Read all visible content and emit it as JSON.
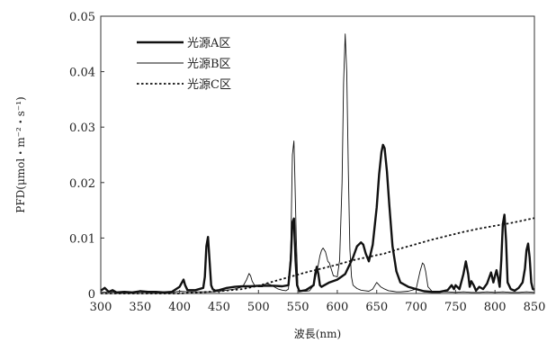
{
  "chart_data": {
    "type": "line",
    "title": "",
    "xlabel": "波長(nm)",
    "ylabel": "PFD(μmol・m⁻²・s⁻¹)",
    "xlim": [
      300,
      850
    ],
    "ylim": [
      0,
      0.05
    ],
    "x_ticks": [
      "300",
      "350",
      "400",
      "450",
      "500",
      "550",
      "600",
      "650",
      "700",
      "750",
      "800",
      "850"
    ],
    "y_ticks": [
      "0",
      "0.01",
      "0.02",
      "0.03",
      "0.04",
      "0.05"
    ],
    "grid": false,
    "legend_position": "top-left",
    "series": [
      {
        "name": "光源A区",
        "style": "thick-solid",
        "x": [
          300,
          305,
          310,
          315,
          320,
          330,
          340,
          350,
          360,
          370,
          380,
          390,
          400,
          403,
          405,
          407,
          410,
          420,
          430,
          432,
          434,
          436,
          438,
          440,
          442,
          445,
          450,
          460,
          470,
          480,
          490,
          500,
          510,
          520,
          530,
          538,
          541,
          543,
          545,
          547,
          549,
          552,
          560,
          570,
          572,
          574,
          576,
          578,
          580,
          590,
          600,
          610,
          620,
          625,
          630,
          633,
          636,
          640,
          645,
          650,
          653,
          656,
          658,
          660,
          663,
          666,
          670,
          675,
          680,
          690,
          700,
          710,
          720,
          730,
          740,
          745,
          748,
          750,
          755,
          760,
          763,
          766,
          768,
          770,
          773,
          776,
          780,
          785,
          790,
          795,
          798,
          800,
          802,
          804,
          806,
          808,
          810,
          812,
          814,
          816,
          820,
          825,
          830,
          835,
          838,
          840,
          842,
          844,
          846,
          848,
          850
        ],
        "values": [
          0.0005,
          0.001,
          0.0003,
          0.0006,
          0.0002,
          0.0003,
          0.0002,
          0.0004,
          0.0003,
          0.0003,
          0.0002,
          0.0003,
          0.0012,
          0.002,
          0.0025,
          0.0015,
          0.0006,
          0.0006,
          0.001,
          0.003,
          0.0085,
          0.0102,
          0.006,
          0.0015,
          0.0008,
          0.0005,
          0.0006,
          0.001,
          0.0012,
          0.0013,
          0.0013,
          0.0014,
          0.0014,
          0.0014,
          0.0013,
          0.0015,
          0.006,
          0.0128,
          0.0135,
          0.006,
          0.0015,
          0.0004,
          0.0006,
          0.0015,
          0.0035,
          0.0048,
          0.0035,
          0.0015,
          0.0012,
          0.002,
          0.0025,
          0.0035,
          0.0065,
          0.0085,
          0.0092,
          0.0088,
          0.0072,
          0.0058,
          0.0088,
          0.0155,
          0.0215,
          0.0255,
          0.0268,
          0.0262,
          0.022,
          0.016,
          0.0085,
          0.004,
          0.002,
          0.0012,
          0.0008,
          0.0004,
          0.0003,
          0.0003,
          0.0006,
          0.0015,
          0.0008,
          0.0015,
          0.0008,
          0.0035,
          0.0058,
          0.0035,
          0.0012,
          0.0022,
          0.0015,
          0.0005,
          0.0012,
          0.0008,
          0.0018,
          0.0038,
          0.002,
          0.0032,
          0.0042,
          0.0028,
          0.0012,
          0.006,
          0.0125,
          0.0142,
          0.0095,
          0.002,
          0.0008,
          0.0005,
          0.001,
          0.002,
          0.0045,
          0.0078,
          0.009,
          0.0065,
          0.002,
          0.0008,
          0.0007
        ]
      },
      {
        "name": "光源B区",
        "style": "thin-solid",
        "x": [
          300,
          310,
          320,
          330,
          340,
          350,
          360,
          370,
          380,
          390,
          400,
          410,
          420,
          430,
          440,
          450,
          460,
          470,
          480,
          485,
          488,
          490,
          492,
          495,
          500,
          505,
          510,
          515,
          520,
          525,
          530,
          535,
          538,
          541,
          543,
          545,
          546,
          548,
          550,
          552,
          555,
          560,
          565,
          570,
          575,
          578,
          580,
          582,
          585,
          588,
          590,
          595,
          600,
          603,
          606,
          608,
          610,
          612,
          614,
          616,
          618,
          620,
          625,
          630,
          635,
          640,
          645,
          650,
          655,
          660,
          665,
          670,
          675,
          680,
          690,
          700,
          705,
          708,
          710,
          712,
          715,
          720,
          730,
          740,
          750,
          760,
          770,
          780,
          790,
          800,
          810,
          820,
          830,
          840,
          850
        ],
        "values": [
          0.0002,
          0.0003,
          0.0002,
          0.0002,
          0.0002,
          0.0003,
          0.0002,
          0.0002,
          0.0003,
          0.0002,
          0.0004,
          0.0003,
          0.0003,
          0.0003,
          0.0003,
          0.0004,
          0.0006,
          0.0008,
          0.0012,
          0.0025,
          0.0036,
          0.0032,
          0.0022,
          0.0015,
          0.0012,
          0.0012,
          0.0018,
          0.0016,
          0.0012,
          0.0008,
          0.0006,
          0.0005,
          0.0008,
          0.008,
          0.025,
          0.0275,
          0.022,
          0.01,
          0.0015,
          0.0006,
          0.0004,
          0.0004,
          0.0005,
          0.0015,
          0.0045,
          0.0068,
          0.0078,
          0.0082,
          0.0075,
          0.0058,
          0.0055,
          0.0032,
          0.003,
          0.006,
          0.02,
          0.038,
          0.0468,
          0.04,
          0.022,
          0.008,
          0.003,
          0.0015,
          0.0009,
          0.0006,
          0.0005,
          0.0004,
          0.0008,
          0.002,
          0.0012,
          0.0008,
          0.0005,
          0.0004,
          0.0003,
          0.0003,
          0.0004,
          0.0008,
          0.004,
          0.0055,
          0.0052,
          0.004,
          0.0012,
          0.0004,
          0.0003,
          0.0003,
          0.0002,
          0.0003,
          0.0002,
          0.0002,
          0.0003,
          0.0002,
          0.0003,
          0.0002,
          0.0002,
          0.0003,
          0.0002
        ]
      },
      {
        "name": "光源C区",
        "style": "dotted",
        "x": [
          300,
          350,
          400,
          450,
          480,
          500,
          520,
          540,
          560,
          580,
          600,
          620,
          640,
          660,
          680,
          700,
          720,
          740,
          760,
          780,
          800,
          820,
          840,
          850
        ],
        "values": [
          0,
          0,
          0,
          0.0004,
          0.0008,
          0.0014,
          0.0022,
          0.003,
          0.0038,
          0.0045,
          0.0052,
          0.006,
          0.0066,
          0.0072,
          0.0081,
          0.0089,
          0.0097,
          0.0104,
          0.0111,
          0.0117,
          0.0122,
          0.0127,
          0.0133,
          0.0136
        ]
      }
    ]
  }
}
